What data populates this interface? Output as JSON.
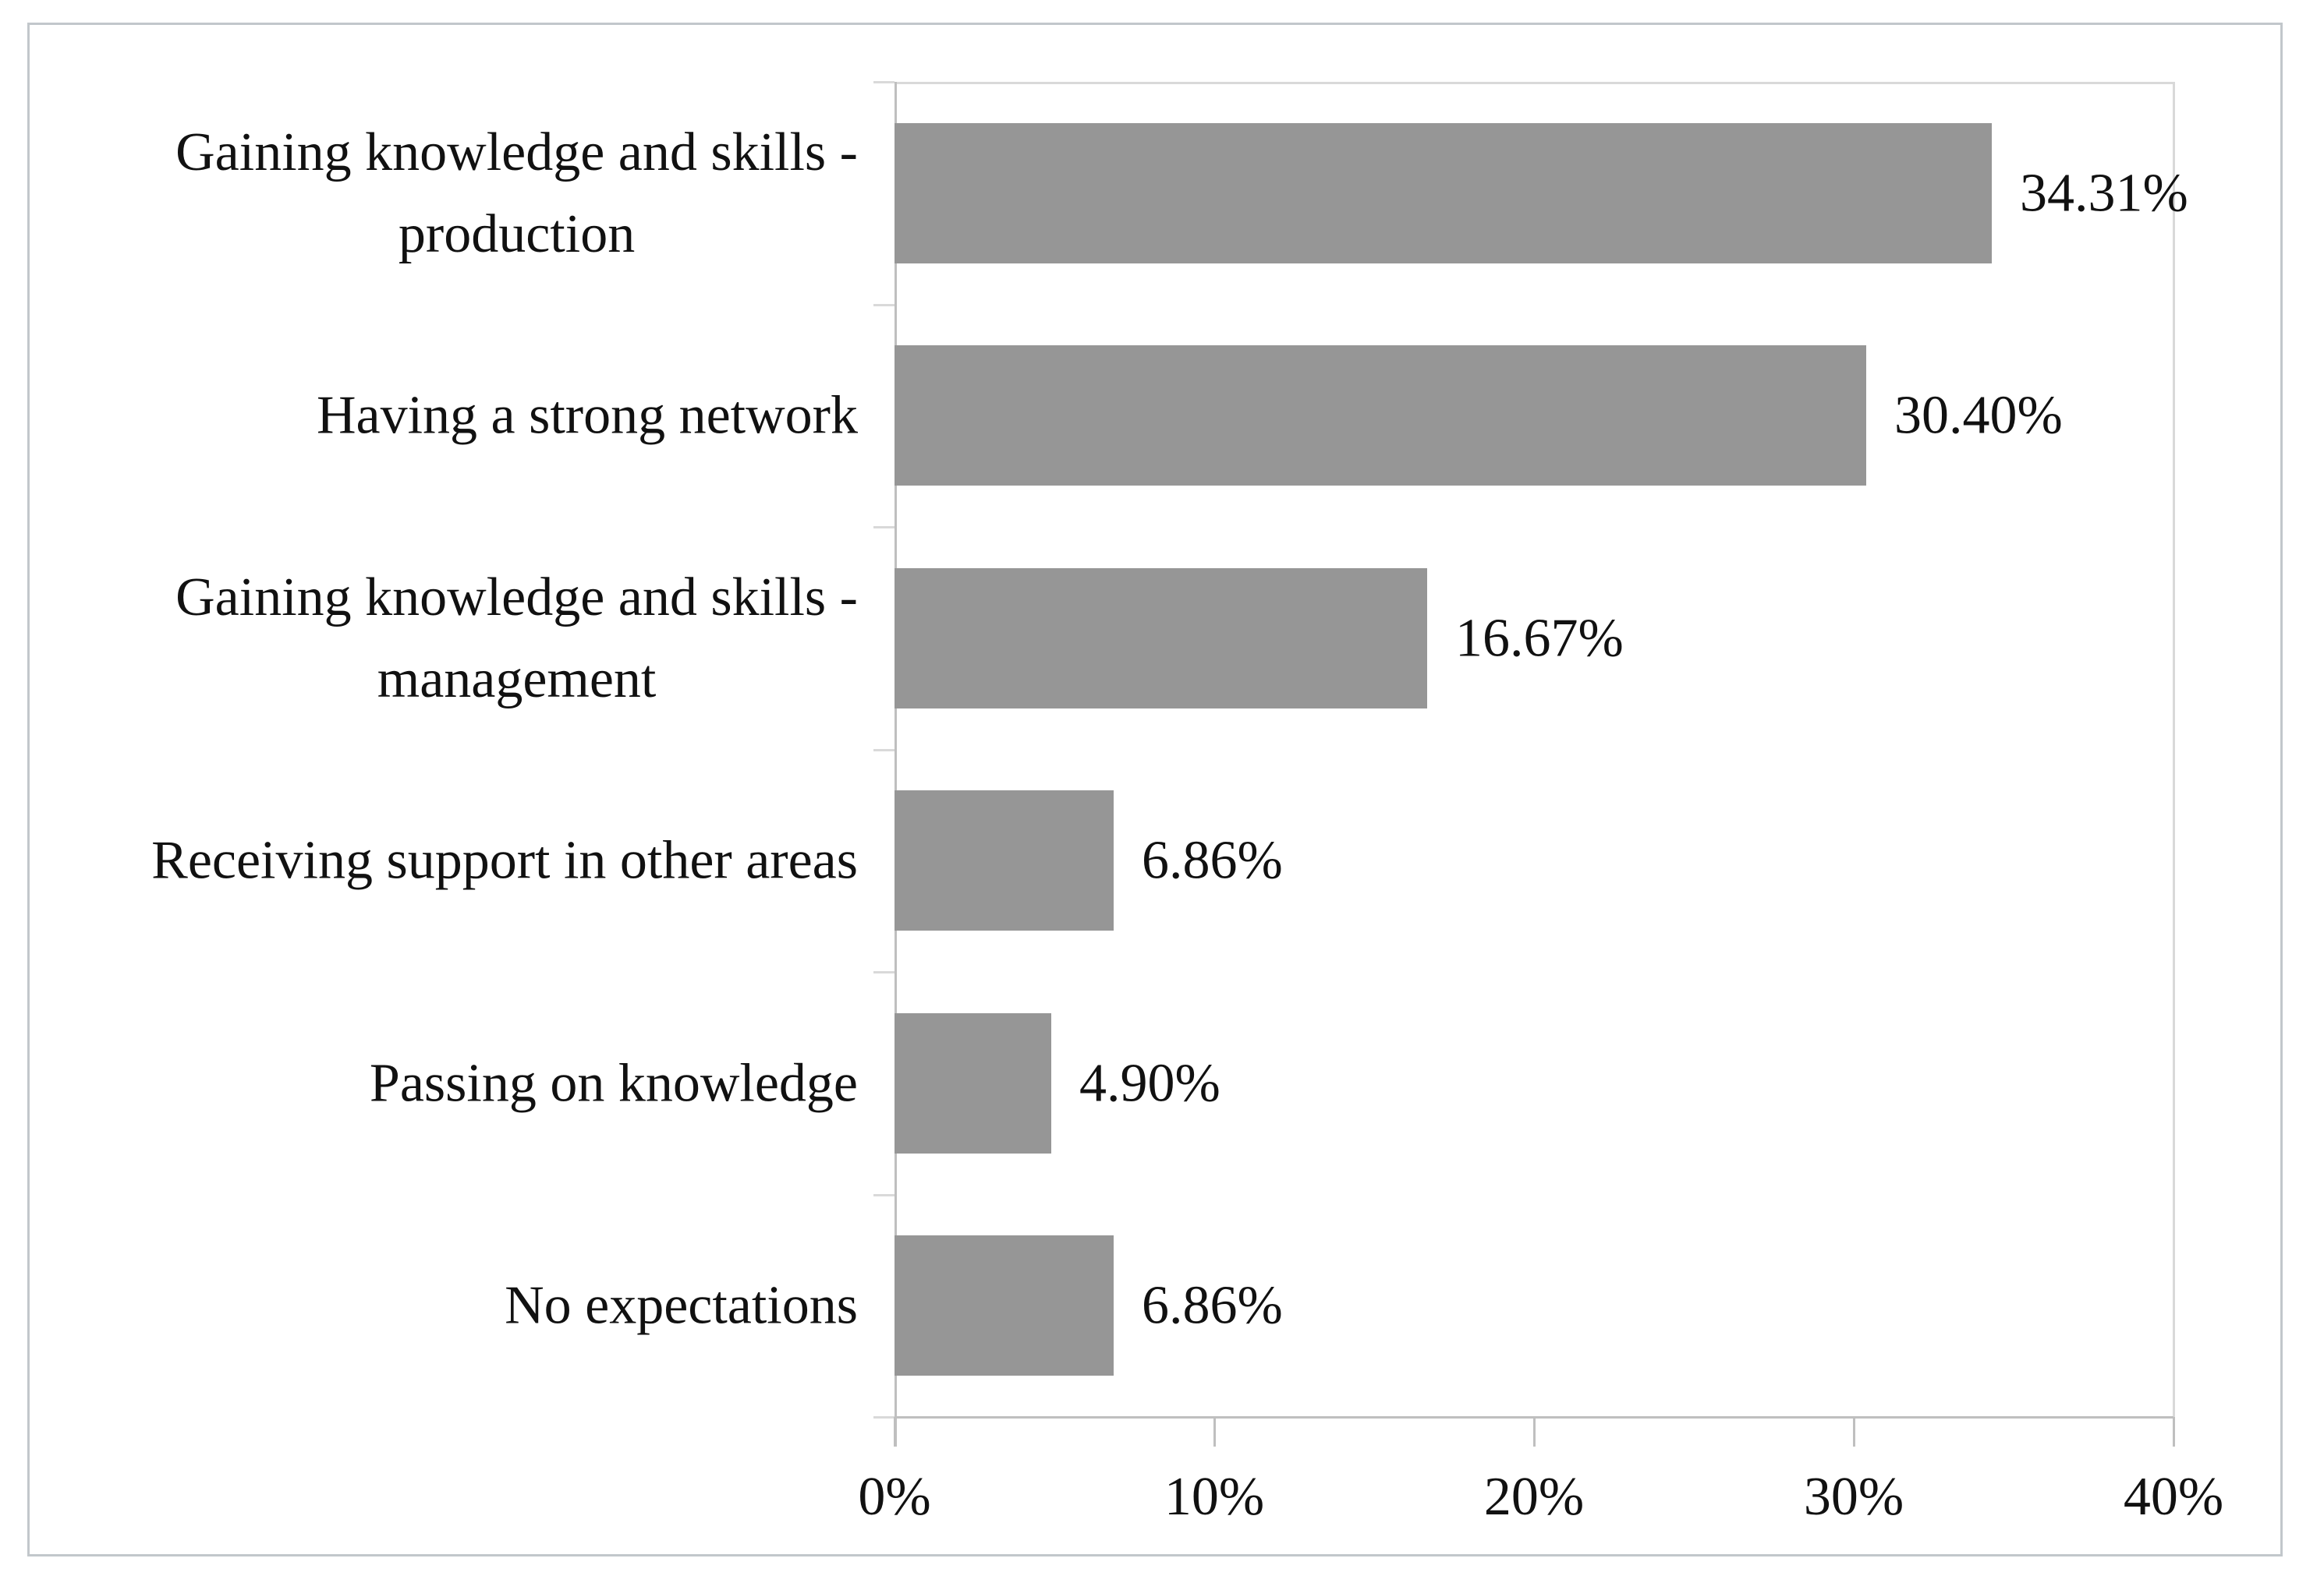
{
  "chart_data": {
    "type": "bar",
    "orientation": "horizontal",
    "title": "",
    "legend": "none",
    "grid": "off",
    "categories": [
      "Gaining knowledge and skills - production",
      "Having a strong network",
      "Gaining knowledge and skills - management",
      "Receiving support in other areas",
      "Passing on knowledge",
      "No expectations"
    ],
    "category_label_lines": [
      [
        "Gaining knowledge and skills -",
        "production"
      ],
      [
        "Having a strong network"
      ],
      [
        "Gaining knowledge and skills -",
        "management"
      ],
      [
        "Receiving support in other areas"
      ],
      [
        "Passing on knowledge"
      ],
      [
        "No expectations"
      ]
    ],
    "values": [
      34.31,
      30.4,
      16.67,
      6.86,
      4.9,
      6.86
    ],
    "value_labels": [
      "34.31%",
      "30.40%",
      "16.67%",
      "6.86%",
      "4.90%",
      "6.86%"
    ],
    "xlabel": "",
    "ylabel": "",
    "x_axis": {
      "min": 0,
      "max": 40,
      "ticks": [
        {
          "pct": 0,
          "label": "0%"
        },
        {
          "pct": 10,
          "label": "10%"
        },
        {
          "pct": 20,
          "label": "20%"
        },
        {
          "pct": 30,
          "label": "30%"
        },
        {
          "pct": 40,
          "label": "40%"
        }
      ]
    },
    "colors": {
      "bar": "#969696",
      "axis": "#bfbfbf",
      "gridline": "#d9d9d9",
      "text": "#111111",
      "frame_border": "#c2c7cb",
      "background": "#ffffff"
    }
  }
}
